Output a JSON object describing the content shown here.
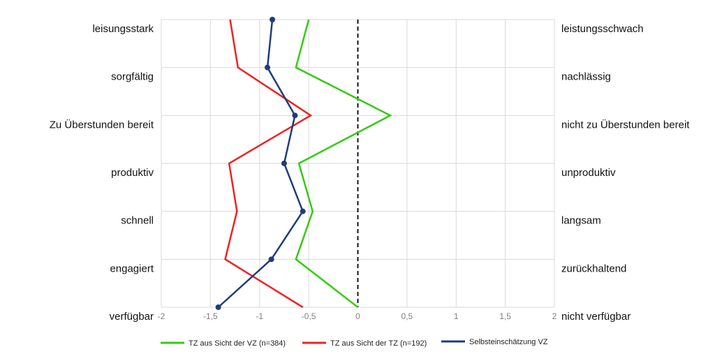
{
  "chart_data": {
    "type": "line",
    "orientation": "horizontal-profile",
    "title": "",
    "xlabel": "",
    "ylabel": "",
    "xlim": [
      -2,
      2
    ],
    "x_ticks": [
      "-2",
      "-1,5",
      "-1",
      "-0,5",
      "0",
      "0,5",
      "1",
      "1,5",
      "2"
    ],
    "grid": true,
    "reference_line": {
      "x": 0,
      "style": "dashed"
    },
    "left_labels": [
      "leisungsstark",
      "sorgfältig",
      "Zu Überstunden bereit",
      "produktiv",
      "schnell",
      "engagiert",
      "verfügbar"
    ],
    "right_labels": [
      "leistungsschwach",
      "nachlässig",
      "nicht zu Überstunden bereit",
      "unproduktiv",
      "langsam",
      "zurückhaltend",
      "nicht verfügbar"
    ],
    "legend_position": "bottom",
    "series": [
      {
        "name": "TZ aus Sicht der VZ (n=384)",
        "color": "#33cc11",
        "markers": false,
        "values": [
          -0.5,
          -0.63,
          0.33,
          -0.6,
          -0.46,
          -0.63,
          0.0
        ]
      },
      {
        "name": "TZ aus Sicht der TZ (n=192)",
        "color": "#ee2222",
        "markers": false,
        "values": [
          -1.3,
          -1.22,
          -0.48,
          -1.31,
          -1.23,
          -1.35,
          -0.56
        ]
      },
      {
        "name": "Selbsteinschätzung VZ",
        "color": "#1f3d7a",
        "markers": true,
        "values": [
          -0.87,
          -0.92,
          -0.64,
          -0.75,
          -0.56,
          -0.88,
          -1.42
        ]
      }
    ]
  }
}
